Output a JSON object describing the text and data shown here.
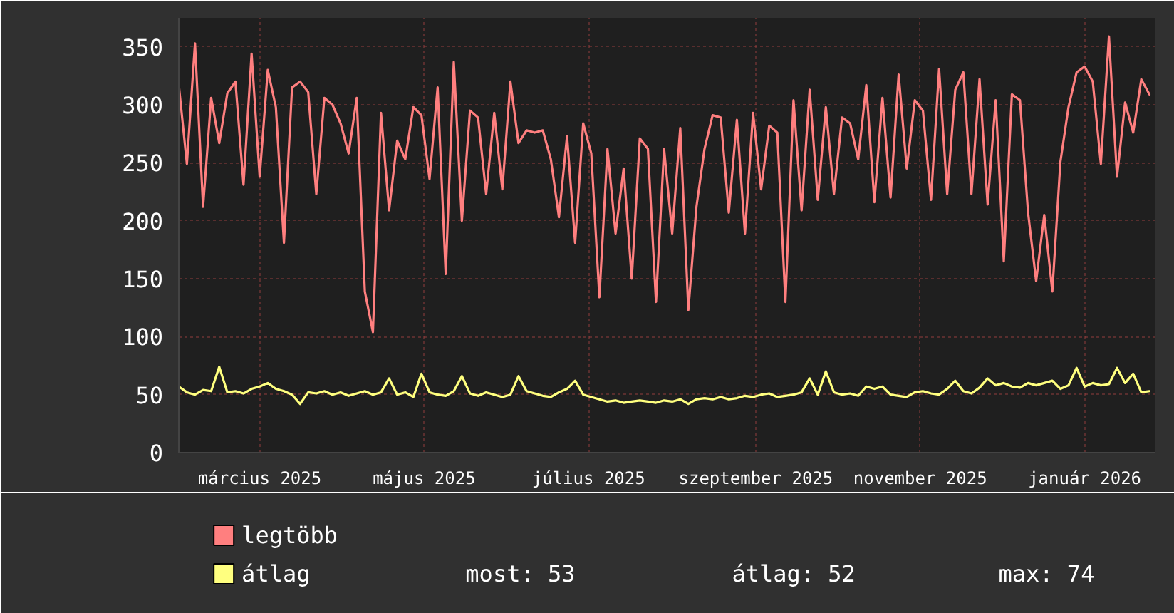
{
  "chart_data": {
    "type": "line",
    "x": [
      "2025-01-30",
      "2025-02-02",
      "2025-02-05",
      "2025-02-08",
      "2025-02-11",
      "2025-02-14",
      "2025-02-17",
      "2025-02-20",
      "2025-02-23",
      "2025-02-26",
      "2025-03-01",
      "2025-03-04",
      "2025-03-07",
      "2025-03-10",
      "2025-03-13",
      "2025-03-16",
      "2025-03-19",
      "2025-03-22",
      "2025-03-25",
      "2025-03-28",
      "2025-03-31",
      "2025-04-03",
      "2025-04-06",
      "2025-04-09",
      "2025-04-12",
      "2025-04-15",
      "2025-04-18",
      "2025-04-21",
      "2025-04-24",
      "2025-04-27",
      "2025-04-30",
      "2025-05-03",
      "2025-05-06",
      "2025-05-09",
      "2025-05-12",
      "2025-05-15",
      "2025-05-18",
      "2025-05-21",
      "2025-05-24",
      "2025-05-27",
      "2025-05-30",
      "2025-06-02",
      "2025-06-05",
      "2025-06-08",
      "2025-06-11",
      "2025-06-14",
      "2025-06-17",
      "2025-06-20",
      "2025-06-23",
      "2025-06-26",
      "2025-06-29",
      "2025-07-02",
      "2025-07-05",
      "2025-07-08",
      "2025-07-11",
      "2025-07-14",
      "2025-07-17",
      "2025-07-20",
      "2025-07-23",
      "2025-07-26",
      "2025-07-29",
      "2025-08-01",
      "2025-08-04",
      "2025-08-07",
      "2025-08-10",
      "2025-08-13",
      "2025-08-16",
      "2025-08-19",
      "2025-08-22",
      "2025-08-25",
      "2025-08-28",
      "2025-08-31",
      "2025-09-03",
      "2025-09-06",
      "2025-09-09",
      "2025-09-12",
      "2025-09-15",
      "2025-09-18",
      "2025-09-21",
      "2025-09-24",
      "2025-09-27",
      "2025-09-30",
      "2025-10-03",
      "2025-10-06",
      "2025-10-09",
      "2025-10-12",
      "2025-10-15",
      "2025-10-18",
      "2025-10-21",
      "2025-10-24",
      "2025-10-27",
      "2025-10-30",
      "2025-11-02",
      "2025-11-05",
      "2025-11-08",
      "2025-11-11",
      "2025-11-14",
      "2025-11-17",
      "2025-11-20",
      "2025-11-23",
      "2025-11-26",
      "2025-11-29",
      "2025-12-02",
      "2025-12-05",
      "2025-12-08",
      "2025-12-11",
      "2025-12-14",
      "2025-12-17",
      "2025-12-20",
      "2025-12-23",
      "2025-12-26",
      "2025-12-29",
      "2026-01-01",
      "2026-01-04",
      "2026-01-07",
      "2026-01-10",
      "2026-01-13",
      "2026-01-16",
      "2026-01-19",
      "2026-01-22",
      "2026-01-25"
    ],
    "series": [
      {
        "name": "legtöbb",
        "color": "#ff7f7f",
        "values": [
          317,
          249,
          353,
          212,
          306,
          267,
          310,
          320,
          231,
          344,
          238,
          330,
          298,
          181,
          315,
          320,
          311,
          223,
          306,
          300,
          284,
          258,
          306,
          139,
          104,
          293,
          209,
          269,
          253,
          298,
          291,
          236,
          315,
          154,
          337,
          200,
          295,
          289,
          223,
          293,
          227,
          320,
          267,
          278,
          276,
          278,
          253,
          203,
          273,
          181,
          284,
          258,
          134,
          262,
          189,
          245,
          150,
          271,
          262,
          130,
          262,
          189,
          280,
          123,
          212,
          262,
          291,
          289,
          207,
          287,
          189,
          293,
          227,
          282,
          276,
          130,
          304,
          209,
          313,
          218,
          298,
          223,
          289,
          284,
          253,
          317,
          216,
          306,
          220,
          326,
          245,
          304,
          295,
          218,
          331,
          223,
          313,
          328,
          223,
          322,
          214,
          304,
          165,
          309,
          304,
          207,
          148,
          205,
          139,
          251,
          298,
          328,
          333,
          320,
          249,
          359,
          238,
          302,
          276,
          322,
          309
        ]
      },
      {
        "name": "átlag",
        "color": "#ffff7f",
        "values": [
          57,
          52,
          50,
          54,
          53,
          74,
          52,
          53,
          51,
          55,
          57,
          60,
          55,
          53,
          50,
          42,
          52,
          51,
          53,
          50,
          52,
          49,
          51,
          53,
          50,
          52,
          64,
          50,
          52,
          48,
          68,
          52,
          50,
          49,
          53,
          66,
          51,
          49,
          52,
          50,
          48,
          50,
          66,
          53,
          51,
          49,
          48,
          52,
          55,
          62,
          50,
          48,
          46,
          44,
          45,
          43,
          44,
          45,
          44,
          43,
          45,
          44,
          46,
          42,
          46,
          47,
          46,
          48,
          46,
          47,
          49,
          48,
          50,
          51,
          48,
          49,
          50,
          52,
          64,
          50,
          70,
          52,
          50,
          51,
          49,
          57,
          55,
          57,
          50,
          49,
          48,
          52,
          53,
          51,
          50,
          55,
          62,
          53,
          51,
          56,
          64,
          58,
          60,
          57,
          56,
          60,
          58,
          60,
          62,
          55,
          58,
          73,
          57,
          60,
          58,
          59,
          73,
          60,
          68,
          52,
          53
        ]
      }
    ],
    "xlim": [
      "2025-01-30",
      "2026-01-27"
    ],
    "xticks": [
      {
        "value": "2025-03-01",
        "label": "március 2025"
      },
      {
        "value": "2025-05-01",
        "label": "május 2025"
      },
      {
        "value": "2025-07-01",
        "label": "július 2025"
      },
      {
        "value": "2025-09-01",
        "label": "szeptember 2025"
      },
      {
        "value": "2025-11-01",
        "label": "november 2025"
      },
      {
        "value": "2026-01-01",
        "label": "január 2026"
      }
    ],
    "ylim": [
      0,
      375
    ],
    "yticks": [
      0,
      50,
      100,
      150,
      200,
      250,
      300,
      350
    ],
    "grid": true,
    "legend": "bottom",
    "annotations": [
      "most: 53",
      "átlag: 52",
      "max: 74"
    ]
  }
}
